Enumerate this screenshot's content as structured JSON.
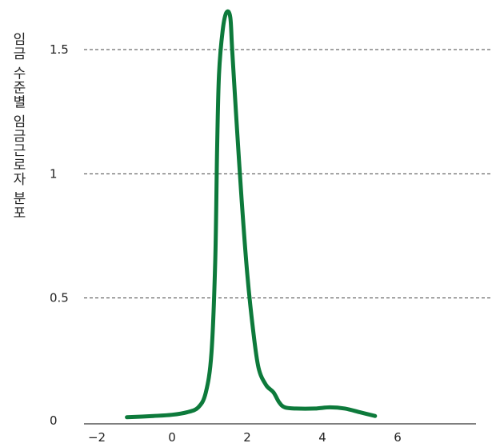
{
  "chart_data": {
    "type": "line",
    "title": "",
    "xlabel": "",
    "ylabel": "임금 수준별 임금근로자 분포",
    "xlim": [
      -2.2,
      8
    ],
    "ylim": [
      0,
      1.7
    ],
    "x_ticks": [
      -2,
      0,
      2,
      4,
      6
    ],
    "x_tick_labels": [
      "−2",
      "0",
      "2",
      "4",
      "6"
    ],
    "y_ticks": [
      0,
      0.5,
      1,
      1.5
    ],
    "y_tick_labels": [
      "0",
      "0.5",
      "1",
      "1.5"
    ],
    "grid": "dashed horizontal at 0.5, 1, 1.5",
    "series": [
      {
        "color": "#0d7a3b",
        "points": [
          [
            -1.2,
            0.02
          ],
          [
            -0.5,
            0.025
          ],
          [
            0,
            0.03
          ],
          [
            0.4,
            0.04
          ],
          [
            0.7,
            0.06
          ],
          [
            0.9,
            0.12
          ],
          [
            1.05,
            0.28
          ],
          [
            1.15,
            0.65
          ],
          [
            1.2,
            1.1
          ],
          [
            1.25,
            1.4
          ],
          [
            1.35,
            1.58
          ],
          [
            1.45,
            1.65
          ],
          [
            1.55,
            1.63
          ],
          [
            1.6,
            1.5
          ],
          [
            1.7,
            1.25
          ],
          [
            1.85,
            0.9
          ],
          [
            2.0,
            0.6
          ],
          [
            2.15,
            0.38
          ],
          [
            2.3,
            0.22
          ],
          [
            2.5,
            0.15
          ],
          [
            2.7,
            0.12
          ],
          [
            2.85,
            0.08
          ],
          [
            3.0,
            0.06
          ],
          [
            3.3,
            0.055
          ],
          [
            3.8,
            0.055
          ],
          [
            4.2,
            0.06
          ],
          [
            4.6,
            0.055
          ],
          [
            5.0,
            0.04
          ],
          [
            5.4,
            0.025
          ]
        ]
      }
    ]
  }
}
